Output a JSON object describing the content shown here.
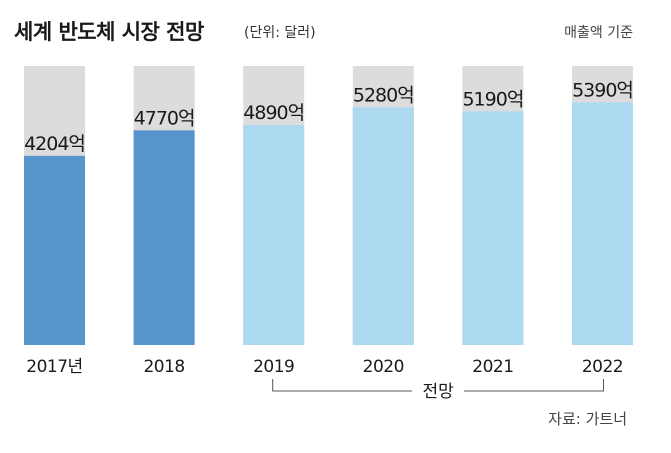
{
  "title": "세계 반도체 시장 전망",
  "unit": "(단위: 달러)",
  "basis": "매출액 기준",
  "source": "자료: 가트너",
  "forecast_label": "전망",
  "colors": {
    "actual": "#5595cc",
    "forecast": "#acd8f0",
    "background": "#dcdcdc"
  },
  "chart_data": {
    "type": "bar",
    "categories": [
      "2017년",
      "2018",
      "2019",
      "2020",
      "2021",
      "2022"
    ],
    "values": [
      4204,
      4770,
      4890,
      5280,
      5190,
      5390
    ],
    "value_labels": [
      "4204억",
      "4770억",
      "4890억",
      "5280억",
      "5190억",
      "5390억"
    ],
    "forecast": [
      false,
      false,
      true,
      true,
      true,
      true
    ],
    "ylim": [
      0,
      6200
    ],
    "grid": false,
    "legend": "none"
  }
}
